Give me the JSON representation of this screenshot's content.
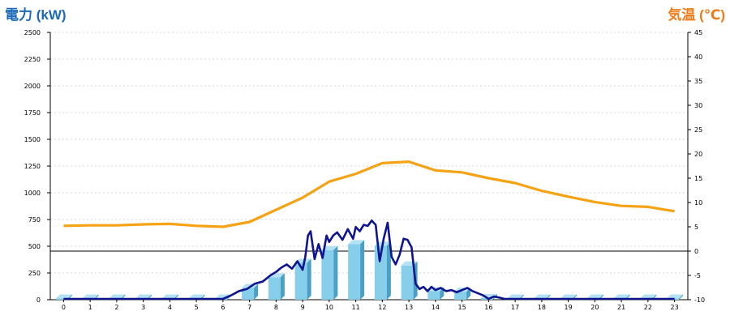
{
  "chart_data": {
    "type": "bar",
    "title_left": "電力 (kW)",
    "title_right": "気温 (℃)",
    "categories": [
      "0",
      "1",
      "2",
      "3",
      "4",
      "5",
      "6",
      "7",
      "8",
      "9",
      "10",
      "11",
      "12",
      "13",
      "14",
      "15",
      "16",
      "17",
      "18",
      "19",
      "20",
      "21",
      "22",
      "23"
    ],
    "y_left": {
      "ylim": [
        0,
        2500
      ],
      "ticks": [
        "0",
        "250",
        "500",
        "750",
        "1000",
        "1250",
        "1500",
        "1750",
        "2000",
        "2250",
        "2500"
      ]
    },
    "y_right": {
      "ylim": [
        -10,
        45
      ],
      "ticks": [
        "-10",
        "-5",
        "0",
        "5",
        "10",
        "15",
        "20",
        "25",
        "30",
        "35",
        "40",
        "45"
      ]
    },
    "grid": true,
    "bar_series": {
      "color": "#87ceeb",
      "values": [
        0,
        0,
        0,
        0,
        0,
        0,
        0,
        110,
        210,
        345,
        465,
        520,
        505,
        320,
        80,
        75,
        15,
        0,
        0,
        0,
        0,
        0,
        0,
        0
      ]
    },
    "temperature_series": {
      "color": "#f5a314",
      "x": [
        0,
        1,
        2,
        3,
        4,
        5,
        6,
        7,
        8,
        9,
        10,
        11,
        12,
        13,
        14,
        15,
        16,
        17,
        18,
        19,
        20,
        21,
        22,
        23
      ],
      "values": [
        5.2,
        5.3,
        5.3,
        5.5,
        5.6,
        5.2,
        5.0,
        6.0,
        8.5,
        11.0,
        14.3,
        15.9,
        18.1,
        18.4,
        16.6,
        16.2,
        15.0,
        14.0,
        12.4,
        11.2,
        10.1,
        9.3,
        9.1,
        8.2
      ]
    },
    "power_series": {
      "color": "#0f158f",
      "x": [
        0,
        1,
        2,
        3,
        4,
        5,
        6,
        6.3,
        6.6,
        6.9,
        7.2,
        7.5,
        7.8,
        8.0,
        8.2,
        8.4,
        8.6,
        8.8,
        9.0,
        9.1,
        9.2,
        9.3,
        9.45,
        9.6,
        9.75,
        9.9,
        10.0,
        10.15,
        10.3,
        10.5,
        10.7,
        10.9,
        11.0,
        11.15,
        11.3,
        11.45,
        11.6,
        11.75,
        11.9,
        12.05,
        12.2,
        12.35,
        12.5,
        12.65,
        12.8,
        12.95,
        13.1,
        13.25,
        13.4,
        13.55,
        13.7,
        13.85,
        14.0,
        14.2,
        14.4,
        14.6,
        14.8,
        15.0,
        15.2,
        15.4,
        15.6,
        15.8,
        16.0,
        16.2,
        16.4,
        16.6,
        17,
        18,
        19,
        20,
        21,
        22,
        23
      ],
      "values": [
        0,
        0,
        0,
        0,
        0,
        0,
        0,
        40,
        80,
        100,
        150,
        170,
        230,
        260,
        300,
        330,
        290,
        360,
        280,
        400,
        600,
        640,
        380,
        520,
        390,
        600,
        540,
        600,
        630,
        560,
        660,
        570,
        680,
        640,
        700,
        690,
        740,
        700,
        360,
        570,
        720,
        400,
        330,
        420,
        570,
        560,
        490,
        150,
        100,
        120,
        80,
        120,
        90,
        110,
        80,
        90,
        70,
        90,
        110,
        80,
        60,
        40,
        0,
        30,
        20,
        0,
        0,
        0,
        0,
        0,
        0,
        0,
        0
      ]
    }
  }
}
